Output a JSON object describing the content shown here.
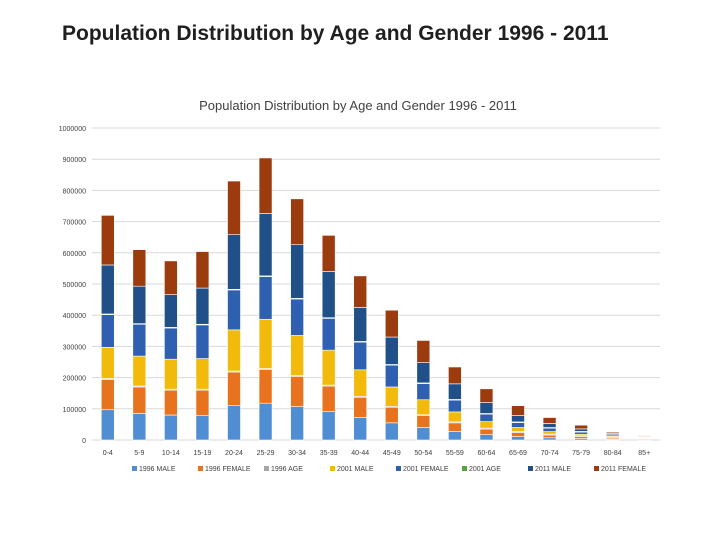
{
  "slide": {
    "title": "Population Distribution by Age and Gender 1996 - 2011"
  },
  "chart_data": {
    "type": "bar",
    "stacked": true,
    "title": "Population Distribution by Age and Gender 1996 - 2011",
    "xlabel": "",
    "ylabel": "",
    "ylim": [
      0,
      1000000
    ],
    "yticks": [
      0,
      100000,
      200000,
      300000,
      400000,
      500000,
      600000,
      700000,
      800000,
      900000,
      1000000
    ],
    "grid": true,
    "legend": "bottom",
    "categories": [
      "0-4",
      "5-9",
      "10-14",
      "15-19",
      "20-24",
      "25-29",
      "30-34",
      "35-39",
      "40-44",
      "45-49",
      "50-54",
      "55-59",
      "60-64",
      "65-69",
      "70-74",
      "75-79",
      "80-84",
      "85+"
    ],
    "series": [
      {
        "name": "1996 MALE",
        "color": "#4f8ed2",
        "values": [
          97000,
          85000,
          80000,
          78000,
          110000,
          118000,
          107000,
          92000,
          72000,
          55000,
          40000,
          27000,
          17000,
          11000,
          7000,
          4500,
          2500,
          1500
        ]
      },
      {
        "name": "1996 FEMALE",
        "color": "#e8731e",
        "values": [
          97000,
          85000,
          80000,
          82000,
          108000,
          108000,
          97000,
          81000,
          65000,
          50000,
          38000,
          28000,
          18000,
          13000,
          9000,
          6000,
          3500,
          2500
        ]
      },
      {
        "name": "1996 AGE",
        "color": "#a6a6a6",
        "values": [
          3000,
          3000,
          3000,
          3000,
          3000,
          3000,
          3000,
          3000,
          3000,
          3000,
          3000,
          3000,
          3000,
          3000,
          3000,
          3000,
          3000,
          2000
        ]
      },
      {
        "name": "2001 MALE",
        "color": "#f2bb0c",
        "values": [
          100000,
          96000,
          96000,
          98000,
          132000,
          158000,
          128000,
          112000,
          85000,
          62000,
          48000,
          32000,
          21000,
          13000,
          8000,
          5000,
          3000,
          1500
        ]
      },
      {
        "name": "2001 FEMALE",
        "color": "#2e5fb0",
        "values": [
          105000,
          102000,
          100000,
          108000,
          128000,
          137000,
          117000,
          102000,
          89000,
          70000,
          52000,
          38000,
          24000,
          16000,
          11000,
          7000,
          4000,
          2000
        ]
      },
      {
        "name": "2001 AGE",
        "color": "#5aa33c",
        "values": [
          2000,
          2000,
          2000,
          2000,
          2000,
          2000,
          2000,
          2000,
          2000,
          2000,
          2000,
          2000,
          2000,
          2000,
          2000,
          2000,
          1000,
          500
        ]
      },
      {
        "name": "2011 MALE",
        "color": "#214f88",
        "values": [
          157000,
          120000,
          105000,
          116000,
          175000,
          200000,
          172000,
          148000,
          109000,
          88000,
          65000,
          50000,
          35000,
          21000,
          13000,
          8000,
          4000,
          1500
        ]
      },
      {
        "name": "2011 FEMALE",
        "color": "#9c3b0e",
        "values": [
          159000,
          117000,
          108000,
          117000,
          172000,
          178000,
          147000,
          116000,
          101000,
          86000,
          71000,
          54000,
          44000,
          31000,
          19000,
          12000,
          4000,
          2500
        ]
      }
    ]
  }
}
